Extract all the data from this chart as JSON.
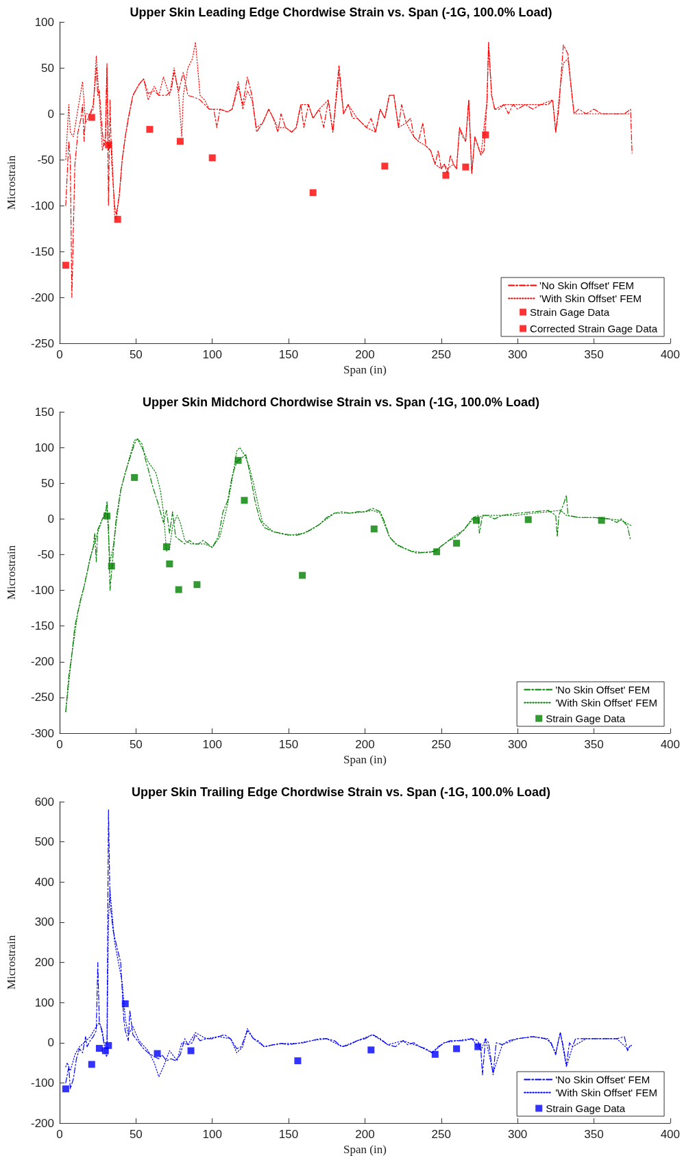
{
  "chart_data": [
    {
      "type": "line",
      "title": "Upper Skin Leading Edge Chordwise Strain vs. Span (-1G, 100.0% Load)",
      "xlabel": "Span (in)",
      "ylabel": "Microstrain",
      "xlim": [
        0,
        400
      ],
      "xticks": [
        0,
        50,
        100,
        150,
        200,
        250,
        300,
        350,
        400
      ],
      "ylim": [
        -250,
        100
      ],
      "yticks": [
        -250,
        -200,
        -150,
        -100,
        -50,
        0,
        50,
        100
      ],
      "grid": false,
      "legend": "bottom right",
      "series": [
        {
          "name": "'No Skin Offset' FEM",
          "type": "line",
          "color": "#ff0000",
          "line_style": "dashed",
          "marker": "none",
          "x": [
            4,
            6,
            7,
            8,
            10,
            12,
            14,
            15,
            16,
            17,
            20,
            22,
            24,
            25,
            26,
            28,
            29,
            30,
            31,
            32,
            33,
            34,
            36,
            37,
            39,
            41,
            43,
            45,
            48,
            52,
            55,
            58,
            62,
            65,
            70,
            73,
            75,
            78,
            81,
            84,
            88,
            92,
            95,
            98,
            101,
            103,
            105,
            110,
            113,
            117,
            120,
            123,
            126,
            129,
            133,
            137,
            140,
            143,
            145,
            148,
            152,
            155,
            158,
            160,
            163,
            166,
            170,
            173,
            176,
            179,
            183,
            186,
            189,
            192,
            195,
            198,
            201,
            204,
            207,
            210,
            213,
            216,
            219,
            222,
            224,
            227,
            230,
            232,
            235,
            238,
            240,
            243,
            246,
            248,
            250,
            252,
            254,
            256,
            258,
            260,
            262,
            264,
            266,
            268,
            270,
            272,
            274,
            276,
            278,
            280,
            281,
            283,
            285,
            288,
            291,
            294,
            297,
            300,
            305,
            310,
            315,
            320,
            323,
            325,
            327,
            328,
            330,
            333,
            335,
            337,
            340,
            345,
            350,
            355,
            360,
            365,
            370,
            374,
            375
          ],
          "values": [
            -100,
            -30,
            -50,
            -200,
            -55,
            -20,
            -5,
            10,
            -30,
            0,
            0,
            10,
            50,
            20,
            25,
            -20,
            -35,
            -30,
            55,
            -100,
            15,
            -50,
            -100,
            -110,
            -90,
            -50,
            -25,
            -5,
            20,
            32,
            38,
            22,
            25,
            20,
            20,
            25,
            45,
            25,
            45,
            20,
            18,
            15,
            10,
            5,
            5,
            -15,
            5,
            2,
            5,
            30,
            10,
            40,
            20,
            -20,
            -10,
            5,
            -5,
            -20,
            0,
            -15,
            -20,
            -15,
            10,
            -15,
            10,
            -5,
            5,
            -15,
            15,
            -20,
            53,
            0,
            10,
            -5,
            -5,
            -10,
            -15,
            -5,
            -20,
            5,
            -5,
            20,
            20,
            -15,
            10,
            -10,
            -5,
            -25,
            -30,
            -10,
            -35,
            -40,
            -55,
            -40,
            -60,
            -55,
            -65,
            -45,
            -55,
            -60,
            -15,
            -25,
            -30,
            15,
            -65,
            -25,
            -35,
            -45,
            -40,
            15,
            78,
            20,
            5,
            5,
            10,
            0,
            10,
            5,
            10,
            5,
            10,
            10,
            15,
            -20,
            5,
            30,
            75,
            65,
            30,
            0,
            5,
            0,
            5,
            0,
            0,
            0,
            0,
            5,
            -43
          ]
        },
        {
          "name": "'With Skin Offset' FEM",
          "type": "line",
          "color": "#ff0000",
          "line_style": "dotted",
          "marker": "none",
          "x": [
            4,
            6,
            7,
            9,
            12,
            15,
            17,
            20,
            22,
            24,
            26,
            28,
            30,
            31,
            32,
            34,
            36,
            37,
            39,
            41,
            43,
            45,
            48,
            52,
            55,
            58,
            62,
            65,
            68,
            72,
            75,
            78,
            80,
            81,
            84,
            87,
            89,
            92,
            95,
            98,
            101,
            105,
            110,
            113,
            117,
            120,
            123,
            126,
            129,
            133,
            137,
            140,
            143,
            148,
            152,
            155,
            158,
            163,
            166,
            170,
            176,
            179,
            183,
            186,
            189,
            195,
            201,
            207,
            210,
            213,
            216,
            219,
            222,
            227,
            232,
            235,
            240,
            243,
            246,
            250,
            252,
            254,
            258,
            260,
            262,
            266,
            268,
            270,
            272,
            276,
            280,
            281,
            283,
            285,
            291,
            297,
            305,
            315,
            323,
            325,
            328,
            330,
            333,
            335,
            337,
            345,
            355,
            365,
            374
          ],
          "values": [
            -50,
            10,
            -20,
            -25,
            5,
            35,
            -10,
            0,
            5,
            63,
            15,
            -40,
            -25,
            50,
            -40,
            -30,
            -110,
            -115,
            -90,
            -50,
            -25,
            -5,
            20,
            32,
            38,
            15,
            30,
            20,
            40,
            20,
            50,
            20,
            -25,
            20,
            50,
            60,
            78,
            20,
            15,
            5,
            5,
            5,
            2,
            5,
            35,
            5,
            25,
            15,
            -15,
            -10,
            5,
            -5,
            -15,
            -15,
            -20,
            -15,
            10,
            10,
            -5,
            5,
            15,
            -20,
            45,
            0,
            10,
            -5,
            -15,
            -20,
            5,
            -5,
            20,
            20,
            -15,
            -10,
            -25,
            -30,
            -35,
            -40,
            -55,
            -60,
            -55,
            -60,
            -55,
            -60,
            -15,
            -30,
            15,
            -65,
            -25,
            -45,
            15,
            75,
            20,
            5,
            10,
            10,
            10,
            10,
            15,
            -20,
            30,
            55,
            60,
            30,
            0,
            0,
            0,
            0,
            0
          ]
        },
        {
          "name": "Strain Gage Data",
          "type": "scatter",
          "color": "#ff0000",
          "marker": "square",
          "x": [
            4,
            21,
            31,
            32,
            38,
            79,
            100,
            166,
            213,
            253,
            266,
            279
          ],
          "values": [
            -165,
            -4,
            null,
            -34,
            -115,
            -30,
            -48,
            -86,
            -57,
            -67,
            -58,
            -23
          ]
        },
        {
          "name": "Corrected Strain Gage Data",
          "type": "scatter",
          "color": "#ff0000",
          "marker": "square",
          "x": [
            59
          ],
          "values": [
            -17
          ]
        }
      ]
    },
    {
      "type": "line",
      "title": "Upper Skin Midchord Chordwise Strain vs. Span (-1G, 100.0% Load)",
      "xlabel": "Span (in)",
      "ylabel": "Microstrain",
      "xlim": [
        0,
        400
      ],
      "xticks": [
        0,
        50,
        100,
        150,
        200,
        250,
        300,
        350,
        400
      ],
      "ylim": [
        -300,
        150
      ],
      "yticks": [
        -300,
        -250,
        -200,
        -150,
        -100,
        -50,
        0,
        50,
        100,
        150
      ],
      "grid": false,
      "legend": "bottom right",
      "series": [
        {
          "name": "'No Skin Offset' FEM",
          "type": "line",
          "color": "#008000",
          "line_style": "dashed",
          "marker": "none",
          "x": [
            4,
            6,
            8,
            10,
            12,
            14,
            16,
            18,
            20,
            22,
            23,
            24,
            25,
            28,
            30,
            31,
            32,
            33,
            35,
            37,
            40,
            43,
            46,
            49,
            51,
            54,
            56,
            58,
            61,
            64,
            66,
            68,
            70,
            72,
            74,
            76,
            79,
            82,
            85,
            88,
            91,
            94,
            97,
            100,
            104,
            107,
            110,
            113,
            116,
            119,
            122,
            125,
            128,
            131,
            134,
            140,
            150,
            155,
            160,
            165,
            170,
            175,
            180,
            185,
            190,
            195,
            200,
            205,
            210,
            213,
            216,
            220,
            225,
            230,
            234,
            238,
            242,
            246,
            250,
            255,
            260,
            265,
            270,
            274,
            275,
            277,
            280,
            285,
            290,
            300,
            310,
            320,
            325,
            326,
            327,
            330,
            332,
            333,
            340,
            350,
            360,
            365,
            368,
            372,
            374
          ],
          "values": [
            -270,
            -220,
            -190,
            -150,
            -130,
            -110,
            -95,
            -75,
            -55,
            -40,
            -20,
            -60,
            -15,
            0,
            5,
            25,
            -10,
            -100,
            -50,
            0,
            40,
            65,
            85,
            105,
            112,
            105,
            85,
            70,
            45,
            25,
            10,
            -5,
            12,
            -20,
            10,
            -25,
            -30,
            -35,
            -30,
            -35,
            -35,
            -30,
            -35,
            -40,
            -25,
            10,
            25,
            60,
            80,
            85,
            90,
            60,
            25,
            0,
            -12,
            -18,
            -22,
            -23,
            -20,
            -15,
            -8,
            2,
            8,
            10,
            8,
            10,
            10,
            15,
            10,
            -5,
            -25,
            -35,
            -40,
            -45,
            -48,
            -47,
            -47,
            -45,
            -38,
            -30,
            -25,
            -15,
            0,
            5,
            -20,
            5,
            5,
            0,
            5,
            8,
            10,
            12,
            5,
            -25,
            5,
            20,
            33,
            5,
            2,
            2,
            0,
            -5,
            0,
            -10,
            -30
          ]
        },
        {
          "name": "'With Skin Offset' FEM",
          "type": "line",
          "color": "#008000",
          "line_style": "dotted",
          "marker": "none",
          "x": [
            4,
            8,
            12,
            16,
            20,
            24,
            28,
            31,
            33,
            35,
            40,
            45,
            49,
            51,
            55,
            58,
            63,
            66,
            68,
            70,
            72,
            74,
            77,
            79,
            82,
            86,
            90,
            95,
            100,
            105,
            110,
            113,
            116,
            118,
            121,
            124,
            127,
            130,
            133,
            140,
            150,
            160,
            170,
            180,
            190,
            200,
            205,
            210,
            216,
            222,
            230,
            238,
            246,
            252,
            258,
            265,
            270,
            275,
            280,
            290,
            300,
            310,
            320,
            328,
            332,
            340,
            350,
            360,
            368,
            375
          ],
          "values": [
            -270,
            -190,
            -130,
            -95,
            -55,
            -25,
            0,
            15,
            -60,
            -40,
            40,
            80,
            110,
            112,
            95,
            80,
            65,
            40,
            10,
            -45,
            -42,
            -10,
            5,
            -5,
            -30,
            -35,
            -35,
            -35,
            -40,
            -25,
            20,
            55,
            95,
            100,
            90,
            75,
            50,
            20,
            -5,
            -18,
            -23,
            -20,
            -8,
            8,
            8,
            10,
            12,
            8,
            -25,
            -38,
            -45,
            -47,
            -45,
            -35,
            -25,
            -15,
            -2,
            3,
            5,
            5,
            5,
            8,
            10,
            12,
            5,
            2,
            2,
            0,
            -2,
            -10
          ]
        },
        {
          "name": "Strain Gage Data",
          "type": "scatter",
          "color": "#008000",
          "marker": "square",
          "x": [
            31,
            34,
            49,
            70,
            72,
            78,
            90,
            117,
            121,
            159,
            206,
            247,
            260,
            273,
            307,
            355
          ],
          "values": [
            4,
            -66,
            58,
            -39,
            -63,
            -99,
            -92,
            82,
            26,
            -79,
            -14,
            -46,
            -34,
            -2,
            -1,
            -2
          ]
        }
      ]
    },
    {
      "type": "line",
      "title": "Upper Skin Trailing Edge Chordwise Strain vs. Span (-1G, 100.0% Load)",
      "xlabel": "Span (in)",
      "ylabel": "Microstrain",
      "xlim": [
        0,
        400
      ],
      "xticks": [
        0,
        50,
        100,
        150,
        200,
        250,
        300,
        350,
        400
      ],
      "ylim": [
        -200,
        600
      ],
      "yticks": [
        -200,
        -100,
        0,
        100,
        200,
        300,
        400,
        500,
        600
      ],
      "grid": false,
      "legend": "bottom right",
      "series": [
        {
          "name": "'No Skin Offset' FEM",
          "type": "line",
          "color": "#0000ff",
          "line_style": "dashed",
          "marker": "none",
          "x": [
            4,
            6,
            7,
            9,
            11,
            13,
            15,
            17,
            18,
            20,
            22,
            24,
            25,
            26,
            27,
            29,
            31,
            32,
            33,
            35,
            38,
            40,
            42,
            43,
            45,
            46,
            48,
            52,
            55,
            58,
            62,
            65,
            67,
            70,
            73,
            76,
            79,
            82,
            84,
            87,
            89,
            92,
            96,
            100,
            104,
            108,
            112,
            116,
            119,
            123,
            127,
            130,
            134,
            140,
            145,
            150,
            155,
            160,
            165,
            170,
            175,
            180,
            185,
            190,
            195,
            200,
            205,
            210,
            215,
            220,
            225,
            228,
            232,
            236,
            240,
            244,
            248,
            252,
            256,
            260,
            265,
            270,
            274,
            276,
            277,
            279,
            281,
            284,
            286,
            290,
            294,
            300,
            310,
            318,
            322,
            325,
            327,
            328,
            330,
            332,
            334,
            336,
            338,
            345,
            355,
            365,
            370,
            372,
            374
          ],
          "values": [
            -100,
            -60,
            -115,
            -90,
            -40,
            -15,
            -25,
            15,
            -10,
            5,
            15,
            30,
            200,
            50,
            40,
            0,
            0,
            580,
            350,
            280,
            230,
            200,
            60,
            30,
            5,
            80,
            20,
            0,
            -15,
            -25,
            -35,
            -40,
            -30,
            -45,
            -40,
            -45,
            -30,
            10,
            -5,
            0,
            20,
            5,
            10,
            10,
            15,
            20,
            10,
            -15,
            -10,
            30,
            10,
            5,
            -10,
            -5,
            -2,
            -5,
            -2,
            0,
            5,
            10,
            10,
            5,
            -10,
            -5,
            5,
            10,
            20,
            10,
            -5,
            -10,
            5,
            -5,
            0,
            -10,
            -15,
            -25,
            -10,
            0,
            5,
            5,
            5,
            10,
            5,
            -20,
            -80,
            10,
            0,
            -80,
            0,
            -5,
            5,
            10,
            15,
            10,
            0,
            -30,
            10,
            25,
            -10,
            -55,
            0,
            -10,
            10,
            10,
            10,
            10,
            15,
            -20,
            -5
          ]
        },
        {
          "name": "'With Skin Offset' FEM",
          "type": "line",
          "color": "#0000ff",
          "line_style": "dotted",
          "marker": "none",
          "x": [
            4,
            5,
            7,
            10,
            13,
            16,
            20,
            24,
            26,
            28,
            30,
            31,
            32,
            33,
            36,
            39,
            41,
            43,
            45,
            48,
            52,
            58,
            62,
            65,
            68,
            72,
            74,
            77,
            80,
            84,
            89,
            96,
            104,
            112,
            116,
            120,
            123,
            127,
            134,
            145,
            155,
            165,
            175,
            185,
            195,
            205,
            215,
            225,
            236,
            244,
            252,
            260,
            270,
            276,
            279,
            284,
            290,
            300,
            310,
            320,
            325,
            328,
            332,
            336,
            345,
            355,
            365,
            372,
            375
          ],
          "values": [
            -60,
            -50,
            -70,
            -30,
            -10,
            0,
            15,
            40,
            50,
            30,
            -30,
            -35,
            300,
            380,
            250,
            190,
            150,
            60,
            20,
            40,
            5,
            -20,
            -50,
            -85,
            -60,
            -20,
            -30,
            -45,
            0,
            -5,
            25,
            10,
            15,
            10,
            -25,
            -10,
            35,
            10,
            -10,
            -2,
            -2,
            5,
            10,
            -10,
            5,
            20,
            -5,
            5,
            -10,
            -25,
            0,
            5,
            10,
            -20,
            10,
            -75,
            -5,
            10,
            15,
            10,
            -25,
            25,
            -60,
            -10,
            10,
            10,
            10,
            -15,
            -5
          ]
        },
        {
          "name": "Strain Gage Data",
          "type": "scatter",
          "color": "#0000ff",
          "marker": "square",
          "x": [
            4,
            21,
            26,
            30,
            32,
            43,
            64,
            86,
            156,
            204,
            246,
            260,
            274
          ],
          "values": [
            -115,
            -54,
            -14,
            -20,
            -7,
            97,
            -27,
            -20,
            -45,
            -18,
            -29,
            -15,
            -10
          ]
        }
      ]
    }
  ]
}
